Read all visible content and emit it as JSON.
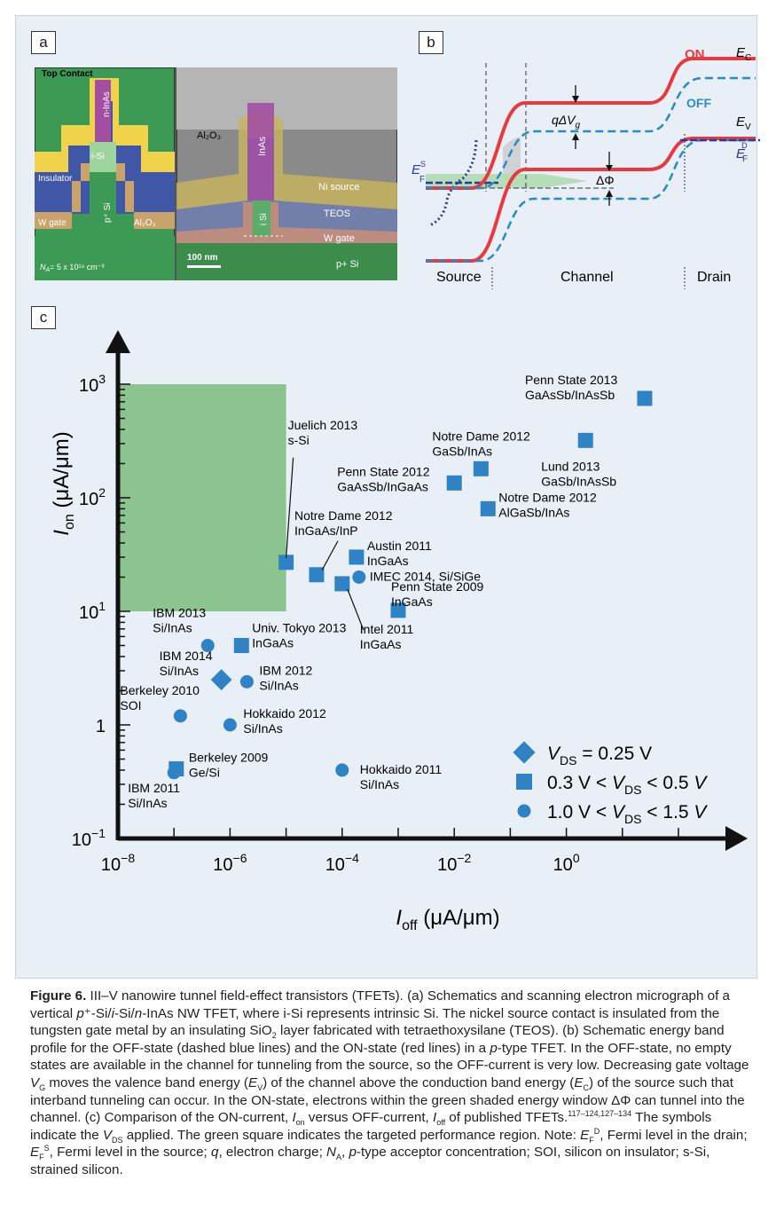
{
  "panel_a": {
    "label": "a",
    "schematic": {
      "top_contact": "Top Contact",
      "n_inas": "n-InAs",
      "i_si": "i-Si",
      "p_si": "p⁺ Si",
      "insulator": "Insulator",
      "w_gate": "W gate",
      "al2o3": "Al₂O₃",
      "na": "N",
      "na_sub": "A",
      "na_value": "= 5 x 10¹⁹ cm⁻³"
    },
    "micrograph": {
      "al2o3": "Al₂O₃",
      "inas": "InAs",
      "ni_source": "Ni source",
      "teos": "TEOS",
      "i_si": "i Si",
      "w_gate": "W gate",
      "p_si": "p+ Si",
      "scale": "100 nm"
    },
    "colors": {
      "yellow": "#f0d34a",
      "blue": "#3f57a6",
      "purple": "#a24fa3",
      "green": "#3c9a54",
      "tan": "#c9a36a",
      "orange": "#d8946a"
    }
  },
  "panel_b": {
    "label": "b",
    "on": "ON",
    "off": "OFF",
    "ec": "E",
    "ec_sub": "C",
    "ev": "E",
    "ev_sub": "V",
    "ef_d": "E",
    "ef_d_sub": "F",
    "ef_d_sup": "D",
    "ef_s": "E",
    "ef_s_sub": "F",
    "ef_s_sup": "S",
    "qdv": "qΔV",
    "qdv_sub": "g",
    "dphi": "ΔΦ",
    "source": "Source",
    "channel": "Channel",
    "drain": "Drain",
    "colors": {
      "on": "#e8393f",
      "off": "#2a8ac8",
      "ef": "#2c3a9a",
      "window": "#a8d8a8"
    }
  },
  "panel_c": {
    "label": "c",
    "chart_data": {
      "type": "scatter",
      "xlabel": "I_off (μA/μm)",
      "ylabel": "I_on (μA/μm)",
      "xscale": "log",
      "yscale": "log",
      "xlim": [
        1e-08,
        100
      ],
      "ylim": [
        0.1,
        1000
      ],
      "x_ticks": [
        {
          "value": 1e-08,
          "base": "10",
          "exp": "−8"
        },
        {
          "value": 1e-06,
          "base": "10",
          "exp": "−6"
        },
        {
          "value": 0.0001,
          "base": "10",
          "exp": "−4"
        },
        {
          "value": 0.01,
          "base": "10",
          "exp": "−2"
        },
        {
          "value": 1,
          "base": "10",
          "exp": "0"
        }
      ],
      "y_ticks": [
        {
          "value": 0.1,
          "base": "10",
          "exp": "−1"
        },
        {
          "value": 1,
          "base": "1",
          "exp": ""
        },
        {
          "value": 10,
          "base": "10",
          "exp": "1"
        },
        {
          "value": 100,
          "base": "10",
          "exp": "2"
        },
        {
          "value": 1000,
          "base": "10",
          "exp": "3"
        }
      ],
      "target_region": {
        "x": [
          1e-08,
          1e-05
        ],
        "y": [
          10,
          1000
        ],
        "color": "#8cc48f"
      },
      "marker_color": "#2f83c5",
      "legend": [
        {
          "marker": "diamond",
          "text": "V_DS = 0.25 V"
        },
        {
          "marker": "square",
          "text": "0.3 V < V_DS < 0.5 V"
        },
        {
          "marker": "circle",
          "text": "1.0 V < V_DS < 1.5 V"
        }
      ],
      "points": [
        {
          "label": [
            "Penn State 2013",
            "GaAsSb/InAsSb"
          ],
          "marker": "square",
          "x": 25,
          "y": 750
        },
        {
          "label": [
            "Lund 2013",
            "GaSb/InAsSb"
          ],
          "marker": "square",
          "x": 2.2,
          "y": 320
        },
        {
          "label": [
            "Notre Dame 2012",
            "GaSb/InAs"
          ],
          "marker": "square",
          "x": 0.03,
          "y": 180
        },
        {
          "label": [
            "Penn State 2012",
            "GaAsSb/InGaAs"
          ],
          "marker": "square",
          "x": 0.01,
          "y": 135
        },
        {
          "label": [
            "Notre Dame 2012",
            "AlGaSb/InAs"
          ],
          "marker": "square",
          "x": 0.04,
          "y": 80
        },
        {
          "label": [
            "Juelich 2013",
            "s-Si"
          ],
          "marker": "square",
          "x": 1e-05,
          "y": 27
        },
        {
          "label": [
            "Notre Dame 2012",
            "InGaAs/InP"
          ],
          "marker": "square",
          "x": 3.5e-05,
          "y": 21
        },
        {
          "label": [
            "Austin 2011",
            "InGaAs"
          ],
          "marker": "square",
          "x": 0.00018,
          "y": 30
        },
        {
          "label": [
            "IMEC 2014, Si/SiGe"
          ],
          "marker": "circle",
          "x": 0.0002,
          "y": 20
        },
        {
          "label": [
            "Intel 2011",
            "InGaAs"
          ],
          "marker": "square",
          "x": 0.0001,
          "y": 17.5
        },
        {
          "label": [
            "Penn State 2009",
            "InGaAs"
          ],
          "marker": "square",
          "x": 0.001,
          "y": 10.2
        },
        {
          "label": [
            "Univ. Tokyo 2013",
            "InGaAs"
          ],
          "marker": "square",
          "x": 1.6e-06,
          "y": 5
        },
        {
          "label": [
            "IBM 2013",
            "Si/InAs"
          ],
          "marker": "circle",
          "x": 4e-07,
          "y": 5
        },
        {
          "label": [
            "IBM 2014",
            "Si/InAs"
          ],
          "marker": "diamond",
          "x": 7e-07,
          "y": 2.5
        },
        {
          "label": [
            "IBM 2012",
            "Si/InAs"
          ],
          "marker": "circle",
          "x": 2e-06,
          "y": 2.4
        },
        {
          "label": [
            "Berkeley 2010",
            "SOI"
          ],
          "marker": "circle",
          "x": 1.3e-07,
          "y": 1.2
        },
        {
          "label": [
            "Hokkaido 2012",
            "Si/InAs"
          ],
          "marker": "circle",
          "x": 1e-06,
          "y": 1
        },
        {
          "label": [
            "Berkeley 2009",
            "Ge/Si"
          ],
          "marker": "square",
          "x": 1.1e-07,
          "y": 0.41
        },
        {
          "label": [
            "IBM 2011",
            "Si/InAs"
          ],
          "marker": "circle",
          "x": 1e-07,
          "y": 0.38
        },
        {
          "label": [
            "Hokkaido 2011",
            "Si/InAs"
          ],
          "marker": "circle",
          "x": 0.0001,
          "y": 0.4
        }
      ]
    }
  },
  "caption": {
    "title": "Figure 6.",
    "title_rest": " III–V nanowire tunnel field-effect transistors (TFETs). (a) Schematics and scanning electron micrograph of a vertical ",
    "p1": "p",
    "p1b": "⁺-Si/",
    "p1c": "i",
    "p1d": "-Si/",
    "p1e": "n",
    "p1f": "-InAs NW TFET, where i-Si represents intrinsic Si. The nickel source contact is insulated from the tungsten gate metal by an insulating SiO",
    "sio2_sub": "2",
    "p2": " layer fabricated with tetraethoxysilane (TEOS). (b) Schematic energy band profile for the OFF-state (dashed blue lines) and the ON-state (red lines) in a ",
    "p3": "p",
    "p4": "-type TFET. In the OFF-state, no empty states are available in the channel for tunneling from the source, so the OFF-current is very low. Decreasing gate voltage ",
    "vg": "V",
    "vg_sub": "G",
    "p5": " moves the valence band energy (",
    "ev": "E",
    "ev_sub": "V",
    "p6": ") of the channel above the conduction band energy (",
    "ec": "E",
    "ec_sub": "C",
    "p7": ") of the source such that interband tunneling can occur. In the ON-state, electrons within the green shaded energy window ΔΦ can tunnel into the channel. (c) Comparison of the ON-current, ",
    "ion": "I",
    "ion_sub": "on",
    "p8": " versus OFF-current, ",
    "ioff": "I",
    "ioff_sub": "off",
    "p9": " of published TFETs.",
    "refs": "117–124,127–134",
    "p10": " The symbols indicate the ",
    "vds": "V",
    "vds_sub": "DS",
    "p11": " applied. The green square indicates the targeted performance region. Note: ",
    "efd": "E",
    "efd_sub": "F",
    "efd_sup": "D",
    "p12": ", Fermi level in the drain; ",
    "efs": "E",
    "efs_sub": "F",
    "efs_sup": "S",
    "p13": ", Fermi level in the source; ",
    "q": "q",
    "p14": ", electron charge; ",
    "na": "N",
    "na_sub": "A",
    "p15": ", ",
    "p16": "p",
    "p17": "-type acceptor concentration; SOI, silicon on insulator; s-Si, strained silicon."
  }
}
